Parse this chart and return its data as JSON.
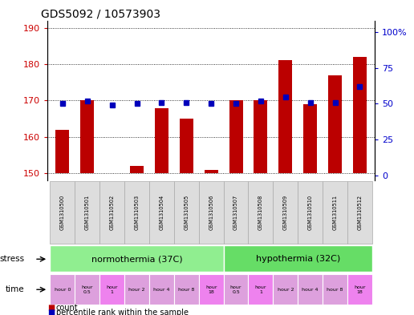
{
  "title": "GDS5092 / 10573903",
  "samples": [
    "GSM1310500",
    "GSM1310501",
    "GSM1310502",
    "GSM1310503",
    "GSM1310504",
    "GSM1310505",
    "GSM1310506",
    "GSM1310507",
    "GSM1310508",
    "GSM1310509",
    "GSM1310510",
    "GSM1310511",
    "GSM1310512"
  ],
  "counts": [
    162,
    170,
    150,
    152,
    168,
    165,
    151,
    170,
    170,
    181,
    169,
    177,
    182
  ],
  "percentiles": [
    50,
    52,
    49,
    50,
    51,
    51,
    50,
    50,
    52,
    55,
    51,
    51,
    62
  ],
  "ylim_left": [
    148,
    192
  ],
  "ylim_right": [
    -3.5,
    108
  ],
  "yticks_left": [
    150,
    160,
    170,
    180,
    190
  ],
  "yticks_right": [
    0,
    25,
    50,
    75,
    100
  ],
  "ytick_labels_left": [
    "150",
    "160",
    "170",
    "180",
    "190"
  ],
  "ytick_labels_right": [
    "0",
    "25",
    "50",
    "75",
    "100%"
  ],
  "stress_groups": [
    {
      "label": "normothermia (37C)",
      "start": 0,
      "end": 7,
      "color": "#90EE90"
    },
    {
      "label": "hypothermia (32C)",
      "start": 7,
      "end": 13,
      "color": "#66DD66"
    }
  ],
  "time_labels": [
    "hour 0",
    "hour\n0.5",
    "hour\n1",
    "hour 2",
    "hour 4",
    "hour 8",
    "hour\n18",
    "hour\n0.5",
    "hour\n1",
    "hour 2",
    "hour 4",
    "hour 8",
    "hour\n18"
  ],
  "time_colors": [
    "#DDA0DD",
    "#DDA0DD",
    "#EE82EE",
    "#DDA0DD",
    "#DDA0DD",
    "#DDA0DD",
    "#EE82EE",
    "#DDA0DD",
    "#EE82EE",
    "#DDA0DD",
    "#DDA0DD",
    "#DDA0DD",
    "#EE82EE"
  ],
  "bar_color": "#BB0000",
  "dot_color": "#0000BB",
  "bar_width": 0.55,
  "grid_color": "black",
  "background_color": "white",
  "title_fontsize": 10,
  "axis_label_color_left": "#CC0000",
  "axis_label_color_right": "#0000CC",
  "sample_box_color": "#DDDDDD",
  "sample_box_edge": "#AAAAAA"
}
